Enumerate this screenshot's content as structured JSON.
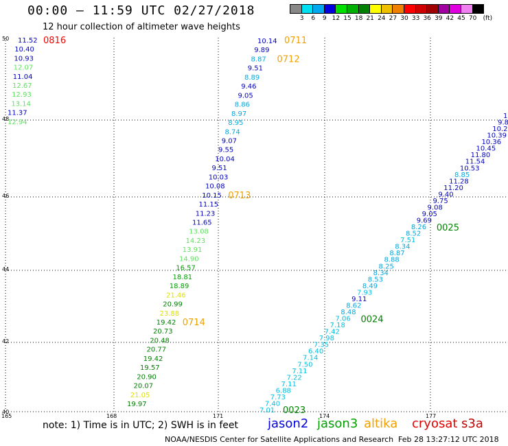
{
  "header": {
    "title": "00:00 – 11:59 UTC 02/27/2018",
    "subtitle": "12 hour collection of altimeter wave heights"
  },
  "colorbar": {
    "unit": "(ft)",
    "labels": [
      "3",
      "6",
      "9",
      "12",
      "15",
      "18",
      "21",
      "24",
      "27",
      "30",
      "33",
      "36",
      "39",
      "42",
      "45",
      "70"
    ],
    "colors": [
      "#888888",
      "#00e0f0",
      "#00a8f0",
      "#0000e0",
      "#00e000",
      "#00b000",
      "#008000",
      "#ffff00",
      "#f0c000",
      "#f08000",
      "#ff0000",
      "#d00000",
      "#a00000",
      "#a000a0",
      "#e000e0",
      "#f080f0",
      "#000000"
    ]
  },
  "axes": {
    "lon_labels": [
      "165",
      "168",
      "171",
      "174",
      "177"
    ],
    "lat_labels": [
      "50",
      "48",
      "46",
      "44",
      "42",
      "40"
    ]
  },
  "tracks": [
    {
      "id": "0816",
      "label": "0816",
      "label_color": "#ff0000",
      "points": [
        {
          "v": "11.52",
          "c": "#0000c0"
        },
        {
          "v": "10.40",
          "c": "#0000c0"
        },
        {
          "v": "10.93",
          "c": "#0000c0"
        },
        {
          "v": "12.07",
          "c": "#60e060"
        },
        {
          "v": "11.04",
          "c": "#0000c0"
        },
        {
          "v": "12.67",
          "c": "#60e060"
        },
        {
          "v": "12.93",
          "c": "#60e060"
        },
        {
          "v": "13.14",
          "c": "#60e060"
        },
        {
          "v": "11.37",
          "c": "#0000c0"
        },
        {
          "v": "12.94",
          "c": "#60e060"
        }
      ]
    },
    {
      "id": "0711",
      "label": "0711",
      "label_color": "#f0a000",
      "points": [
        {
          "v": "10.14",
          "c": "#0000c0"
        },
        {
          "v": "9.89",
          "c": "#0000c0"
        },
        {
          "v": "8.87",
          "c": "#00a8e0"
        },
        {
          "v": "9.51",
          "c": "#0000c0"
        },
        {
          "v": "8.89",
          "c": "#00a8e0"
        },
        {
          "v": "9.46",
          "c": "#0000c0"
        },
        {
          "v": "9.05",
          "c": "#0000c0"
        },
        {
          "v": "8.86",
          "c": "#00a8e0"
        },
        {
          "v": "8.97",
          "c": "#00a8e0"
        },
        {
          "v": "8.95",
          "c": "#00a8e0"
        },
        {
          "v": "8.74",
          "c": "#00a8e0"
        },
        {
          "v": "9.07",
          "c": "#0000c0"
        },
        {
          "v": "9.55",
          "c": "#0000c0"
        },
        {
          "v": "10.04",
          "c": "#0000c0"
        },
        {
          "v": "9.51",
          "c": "#0000c0"
        },
        {
          "v": "10.03",
          "c": "#0000c0"
        },
        {
          "v": "10.08",
          "c": "#0000c0"
        },
        {
          "v": "10.15",
          "c": "#0000c0"
        },
        {
          "v": "11.15",
          "c": "#0000c0"
        },
        {
          "v": "11.23",
          "c": "#0000c0"
        },
        {
          "v": "11.65",
          "c": "#0000c0"
        },
        {
          "v": "13.08",
          "c": "#60e060"
        },
        {
          "v": "14.23",
          "c": "#60e060"
        },
        {
          "v": "13.91",
          "c": "#60e060"
        },
        {
          "v": "14.90",
          "c": "#60e060"
        },
        {
          "v": "16.57",
          "c": "#00a000"
        },
        {
          "v": "18.81",
          "c": "#00a000"
        },
        {
          "v": "18.89",
          "c": "#00a000"
        },
        {
          "v": "21.46",
          "c": "#e0e000"
        },
        {
          "v": "20.99",
          "c": "#008000"
        },
        {
          "v": "23.88",
          "c": "#e0e000"
        },
        {
          "v": "19.42",
          "c": "#008000"
        },
        {
          "v": "20.73",
          "c": "#008000"
        },
        {
          "v": "20.48",
          "c": "#008000"
        },
        {
          "v": "20.77",
          "c": "#008000"
        },
        {
          "v": "19.42",
          "c": "#008000"
        },
        {
          "v": "19.57",
          "c": "#008000"
        },
        {
          "v": "20.90",
          "c": "#008000"
        },
        {
          "v": "20.07",
          "c": "#008000"
        },
        {
          "v": "21.05",
          "c": "#e0e000"
        },
        {
          "v": "19.97",
          "c": "#008000"
        }
      ],
      "time_labels": [
        {
          "after_index": 2,
          "text": "0712",
          "color": "#f0a000"
        },
        {
          "after_index": 17,
          "text": "0713",
          "color": "#f0a000"
        },
        {
          "after_index": 31,
          "text": "0714",
          "color": "#f0a000"
        }
      ]
    },
    {
      "id": "0023",
      "label": "0023",
      "label_color": "#008000",
      "points": [
        {
          "v": "7.01",
          "c": "#00c0e0"
        },
        {
          "v": "7.40",
          "c": "#00c0e0"
        },
        {
          "v": "7.73",
          "c": "#00c0e0"
        },
        {
          "v": "6.88",
          "c": "#00c0e0"
        },
        {
          "v": "7.11",
          "c": "#00c0e0"
        },
        {
          "v": "7.22",
          "c": "#00c0e0"
        },
        {
          "v": "7.11",
          "c": "#00c0e0"
        },
        {
          "v": "7.50",
          "c": "#00c0e0"
        },
        {
          "v": "7.14",
          "c": "#00c0e0"
        },
        {
          "v": "6.40",
          "c": "#00c0e0"
        },
        {
          "v": "7.35",
          "c": "#00c0e0"
        },
        {
          "v": "7.98",
          "c": "#00c0e0"
        },
        {
          "v": "7.42",
          "c": "#00c0e0"
        },
        {
          "v": "7.18",
          "c": "#00c0e0"
        },
        {
          "v": "7.06",
          "c": "#00c0e0"
        },
        {
          "v": "8.48",
          "c": "#00a8e0"
        },
        {
          "v": "8.62",
          "c": "#00a8e0"
        },
        {
          "v": "9.11",
          "c": "#0000c0"
        },
        {
          "v": "7.93",
          "c": "#00c0e0"
        },
        {
          "v": "8.49",
          "c": "#00a8e0"
        },
        {
          "v": "8.53",
          "c": "#00a8e0"
        },
        {
          "v": "8.34",
          "c": "#00a8e0"
        },
        {
          "v": "8.25",
          "c": "#00a8e0"
        },
        {
          "v": "8.88",
          "c": "#00a8e0"
        },
        {
          "v": "8.87",
          "c": "#00a8e0"
        },
        {
          "v": "8.34",
          "c": "#00a8e0"
        },
        {
          "v": "7.51",
          "c": "#00c0e0"
        },
        {
          "v": "8.52",
          "c": "#00a8e0"
        },
        {
          "v": "8.26",
          "c": "#00a8e0"
        },
        {
          "v": "9.69",
          "c": "#0000c0"
        },
        {
          "v": "9.05",
          "c": "#0000c0"
        },
        {
          "v": "9.08",
          "c": "#0000c0"
        },
        {
          "v": "9.75",
          "c": "#0000c0"
        },
        {
          "v": "9.40",
          "c": "#0000c0"
        },
        {
          "v": "11.20",
          "c": "#0000c0"
        },
        {
          "v": "11.28",
          "c": "#0000c0"
        },
        {
          "v": "8.85",
          "c": "#00a8e0"
        },
        {
          "v": "10.53",
          "c": "#0000c0"
        },
        {
          "v": "11.54",
          "c": "#0000c0"
        },
        {
          "v": "11.80",
          "c": "#0000c0"
        },
        {
          "v": "10.45",
          "c": "#0000c0"
        },
        {
          "v": "10.36",
          "c": "#0000c0"
        },
        {
          "v": "10.39",
          "c": "#0000c0"
        },
        {
          "v": "10.25",
          "c": "#0000c0"
        },
        {
          "v": "9.8",
          "c": "#0000c0"
        },
        {
          "v": "10",
          "c": "#0000c0"
        }
      ],
      "time_labels": [
        {
          "after_index": 14,
          "text": "0024",
          "color": "#008000"
        },
        {
          "after_index": 28,
          "text": "0025",
          "color": "#008000"
        }
      ]
    }
  ],
  "footer": {
    "note": "note:  1) Time is in UTC;  2) SWH is in feet",
    "satellites": [
      {
        "name": "jason2",
        "color": "#0000e0"
      },
      {
        "name": "jason3",
        "color": "#00a000"
      },
      {
        "name": "altika",
        "color": "#f0a000"
      },
      {
        "name": "cryosat",
        "color": "#e00000"
      },
      {
        "name": "s3a",
        "color": "#c00000"
      }
    ],
    "credit": "NOAA/NESDIS Center for Satellite Applications and Research",
    "timestamp": "Feb 28 13:27:12 UTC 2018"
  }
}
